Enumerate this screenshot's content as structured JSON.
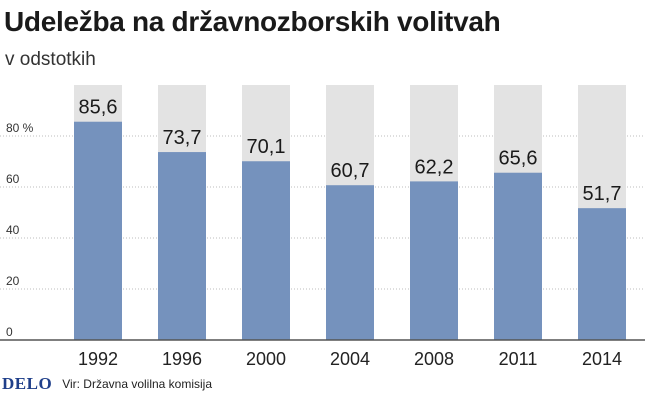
{
  "chart_data": {
    "type": "bar",
    "title": "Udeležba na državnozborskih volitvah",
    "subtitle": "v odstotkih",
    "categories": [
      "1992",
      "1996",
      "2000",
      "2004",
      "2008",
      "2011",
      "2014"
    ],
    "values": [
      85.6,
      73.7,
      70.1,
      60.7,
      62.2,
      65.6,
      51.7
    ],
    "value_labels": [
      "85,6",
      "73,7",
      "70,1",
      "60,7",
      "62,2",
      "65,6",
      "51,7"
    ],
    "y_ticks": [
      "0",
      "20",
      "40",
      "60",
      "80 %"
    ],
    "y_tick_values": [
      0,
      20,
      40,
      60,
      80
    ],
    "ylim": [
      0,
      100
    ],
    "xlabel": "",
    "ylabel": "",
    "grid": "horizontal",
    "colors": {
      "bar": "#7592bd",
      "background_bar": "#e3e3e3",
      "grid": "#bdbdbd",
      "axis": "#555555"
    }
  },
  "footer": {
    "logo": "DELO",
    "source": "Vir: Državna volilna komisija"
  }
}
